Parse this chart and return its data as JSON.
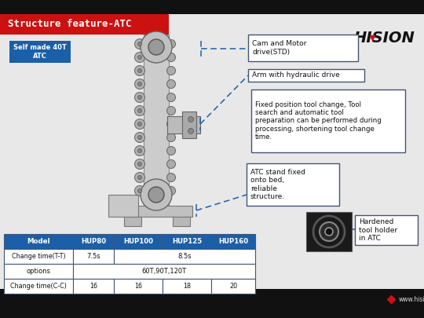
{
  "bg_color": "#111111",
  "slide_bg": "#e8e8e8",
  "title": "Structure feature-ATC",
  "title_bg": "#cc1111",
  "title_color": "#ffffff",
  "subtitle_label": "Self made 40T\nATC",
  "subtitle_bg": "#1a5fa8",
  "subtitle_color": "#ffffff",
  "callout_cam": "Cam and Motor\ndrive(STD)",
  "callout_arm": "Arm with hydraulic drive",
  "callout_fixed": "Fixed position tool change, Tool\nsearch and automatic tool\npreparation can be performed during\nprocessing, shortening tool change\ntime.",
  "callout_atc": "ATC stand fixed\nonto bed,\nreliable\nstructure.",
  "callout_hardened": "Hardened\ntool holder\nin ATC",
  "logo_text": "HISION",
  "website": "www.hision.com",
  "table_headers": [
    "Model",
    "HUP80",
    "HUP100",
    "HUP125",
    "HUP160"
  ],
  "table_header_bg": "#1a5fa8",
  "table_header_color": "#ffffff",
  "table_border_color": "#445577",
  "dash_color": "#1a5fa8",
  "box_border": "#445577",
  "text_color": "#111111"
}
